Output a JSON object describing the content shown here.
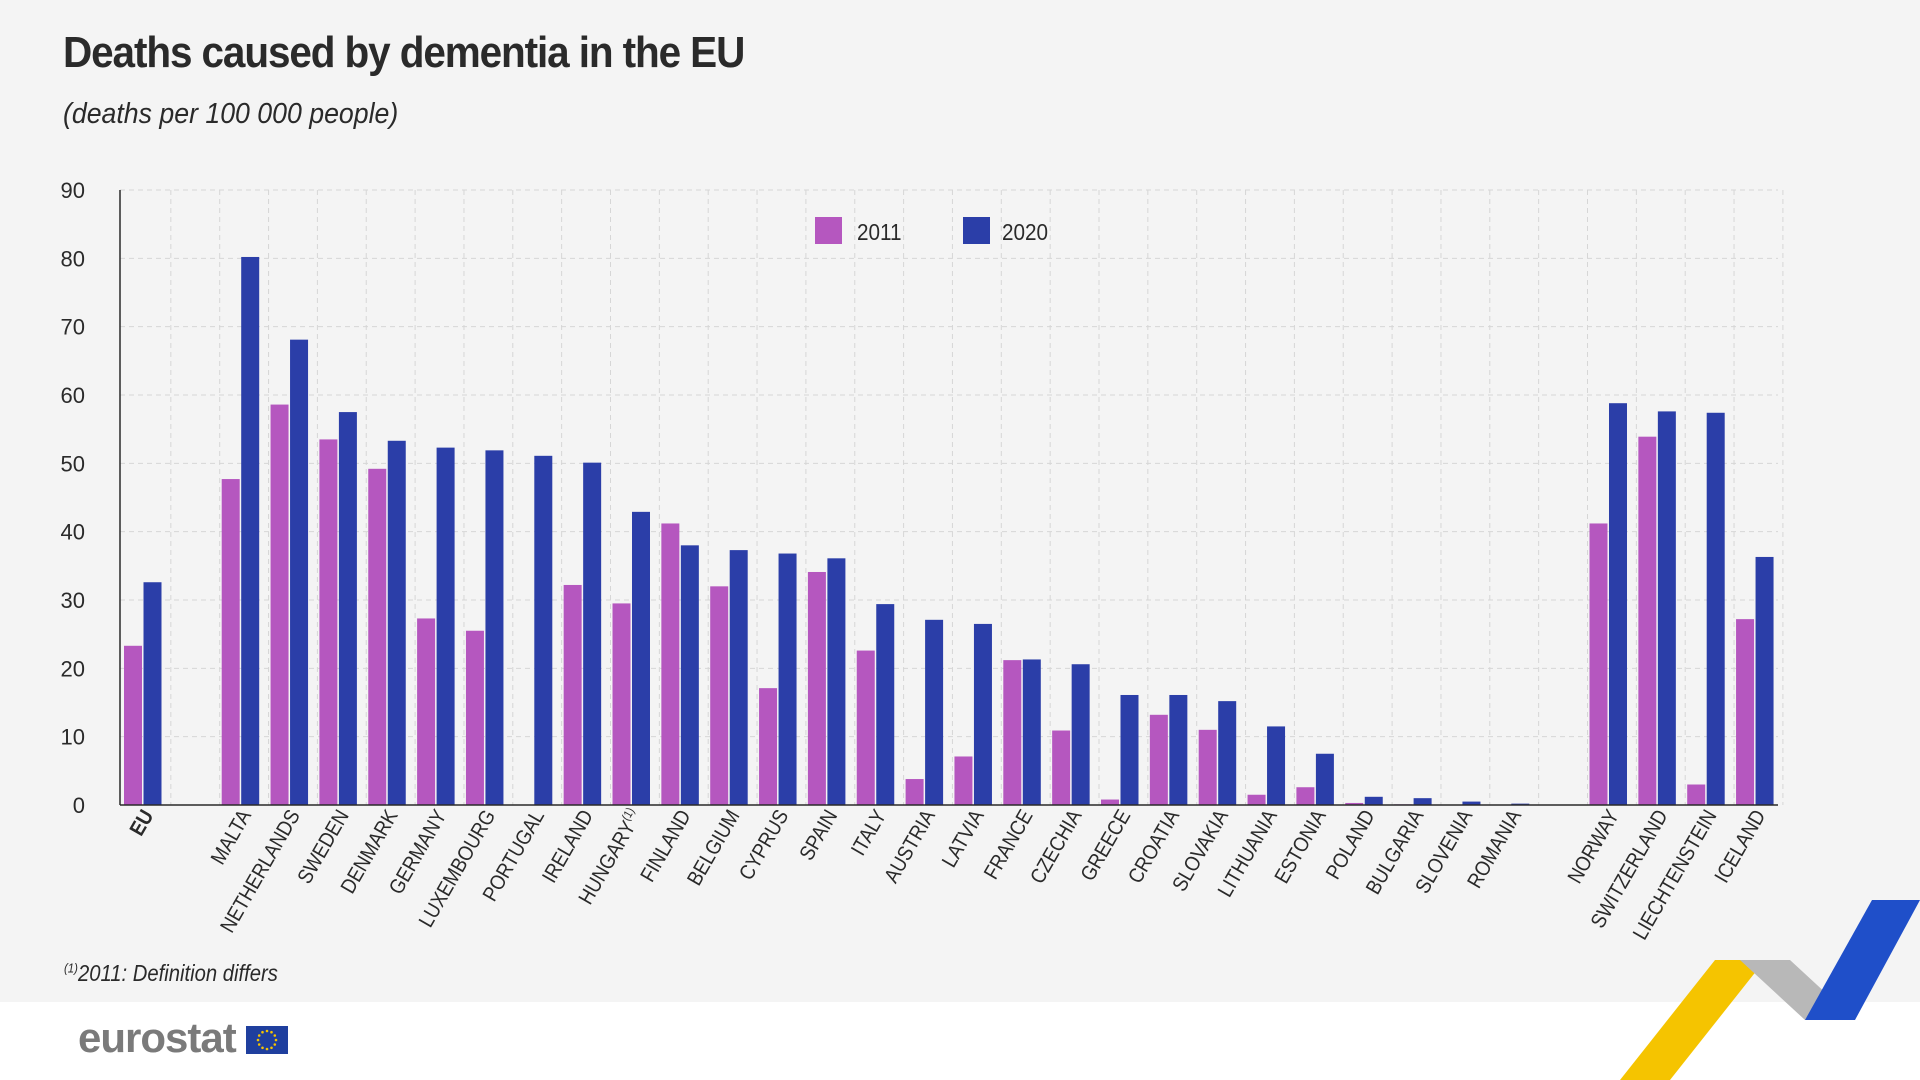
{
  "title": "Deaths caused by dementia in the EU",
  "subtitle": "(deaths per 100 000 people)",
  "footnote_mark": "(1)",
  "footnote_text": "2011: Definition differs",
  "brand": {
    "name": "eurostat"
  },
  "colors": {
    "series_2011": "#b557bf",
    "series_2020": "#2b3ea8",
    "accent_yellow": "#f5c400",
    "accent_blue": "#1f4fc9",
    "accent_grey": "#b8b8b8"
  },
  "chart_data": {
    "type": "bar",
    "title": "Deaths caused by dementia in the EU",
    "subtitle": "(deaths per 100 000 people)",
    "xlabel": "",
    "ylabel": "",
    "ylim": [
      0,
      90
    ],
    "yticks": [
      0,
      10,
      20,
      30,
      40,
      50,
      60,
      70,
      80,
      90
    ],
    "grid": true,
    "legend_position": "top-center",
    "categories": [
      "EU",
      "MALTA",
      "NETHERLANDS",
      "SWEDEN",
      "DENMARK",
      "GERMANY",
      "LUXEMBOURG",
      "PORTUGAL",
      "IRELAND",
      "HUNGARY",
      "FINLAND",
      "BELGIUM",
      "CYPRUS",
      "SPAIN",
      "ITALY",
      "AUSTRIA",
      "LATVIA",
      "FRANCE",
      "CZECHIA",
      "GREECE",
      "CROATIA",
      "SLOVAKIA",
      "LITHUANIA",
      "ESTONIA",
      "POLAND",
      "BULGARIA",
      "SLOVENIA",
      "ROMANIA",
      "NORWAY",
      "SWITZERLAND",
      "LIECHTENSTEIN",
      "ICELAND"
    ],
    "category_notes": {
      "HUNGARY": "(1)"
    },
    "group_breaks_after": [
      "EU",
      "ROMANIA"
    ],
    "series": [
      {
        "name": "2011",
        "values": [
          23.3,
          47.7,
          58.6,
          53.5,
          49.2,
          27.3,
          25.5,
          null,
          32.2,
          29.5,
          41.2,
          32.0,
          17.1,
          34.1,
          22.6,
          3.8,
          7.1,
          21.2,
          10.9,
          0.8,
          13.2,
          11.0,
          1.5,
          2.6,
          0.3,
          0.1,
          null,
          null,
          41.2,
          53.9,
          3.0,
          27.2
        ]
      },
      {
        "name": "2020",
        "values": [
          32.6,
          80.2,
          68.1,
          57.5,
          53.3,
          52.3,
          51.9,
          51.1,
          50.1,
          42.9,
          38.0,
          37.3,
          36.8,
          36.1,
          29.4,
          27.1,
          26.5,
          21.3,
          20.6,
          16.1,
          16.1,
          15.2,
          11.5,
          7.5,
          1.2,
          1.0,
          0.5,
          0.2,
          58.8,
          57.6,
          57.4,
          36.3
        ]
      }
    ]
  }
}
